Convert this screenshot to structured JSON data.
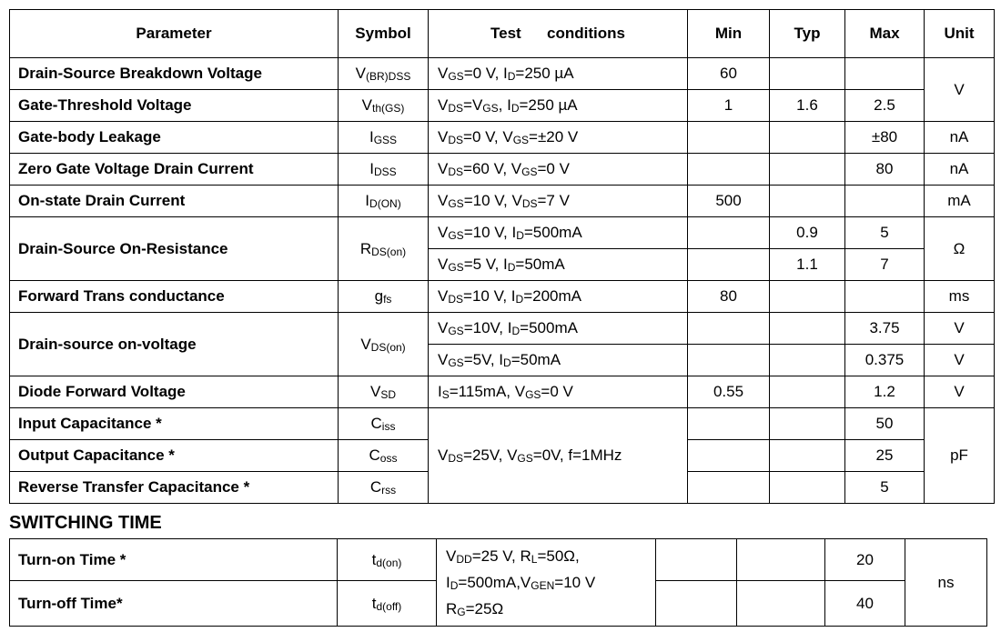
{
  "main_table": {
    "headers": [
      "Parameter",
      "Symbol",
      "Test      conditions",
      "Min",
      "Typ",
      "Max",
      "Unit"
    ],
    "rows": [
      {
        "parameter": "Drain-Source Breakdown Voltage",
        "symbol": [
          "V",
          "(BR)DSS"
        ],
        "conditions": [
          "V",
          "GS",
          "=0 V, I",
          "D",
          "=250 µA"
        ],
        "min": "60",
        "typ": "",
        "max": "",
        "unit": "V"
      },
      {
        "parameter": "Gate-Threshold Voltage",
        "symbol": [
          "V",
          "th(GS)"
        ],
        "conditions": [
          "V",
          "DS",
          "=V",
          "GS",
          ", I",
          "D",
          "=250 µA"
        ],
        "min": "1",
        "typ": "1.6",
        "max": "2.5"
      },
      {
        "parameter": "Gate-body Leakage",
        "symbol": [
          "I",
          "GSS"
        ],
        "conditions": [
          "V",
          "DS",
          "=0 V, V",
          "GS",
          "=±20 V"
        ],
        "min": "",
        "typ": "",
        "max": "±80",
        "unit": "nA"
      },
      {
        "parameter": "Zero Gate Voltage Drain Current",
        "symbol": [
          "I",
          "DSS"
        ],
        "conditions": [
          "V",
          "DS",
          "=60 V, V",
          "GS",
          "=0 V"
        ],
        "min": "",
        "typ": "",
        "max": "80",
        "unit": "nA"
      },
      {
        "parameter": "On-state Drain Current",
        "symbol": [
          "I",
          "D(ON)"
        ],
        "conditions": [
          "V",
          "GS",
          "=10 V, V",
          "DS",
          "=7 V"
        ],
        "min": "500",
        "typ": "",
        "max": "",
        "unit": "mA"
      },
      {
        "parameter": "Drain-Source On-Resistance",
        "symbol": [
          "R",
          "DS(on)"
        ],
        "conditions": [
          "V",
          "GS",
          "=10 V, I",
          "D",
          "=500mA"
        ],
        "min": "",
        "typ": "0.9",
        "max": "5",
        "unit": "Ω"
      },
      {
        "conditions": [
          "V",
          "GS",
          "=5 V, I",
          "D",
          "=50mA"
        ],
        "min": "",
        "typ": "1.1",
        "max": "7"
      },
      {
        "parameter": "Forward Trans conductance",
        "symbol": [
          "g",
          "fs"
        ],
        "conditions": [
          "V",
          "DS",
          "=10 V, I",
          "D",
          "=200mA"
        ],
        "min": "80",
        "typ": "",
        "max": "",
        "unit": "ms"
      },
      {
        "parameter": "Drain-source on-voltage",
        "symbol": [
          "V",
          "DS(on)"
        ],
        "conditions": [
          "V",
          "GS",
          "=10V, I",
          "D",
          "=500mA"
        ],
        "min": "",
        "typ": "",
        "max": "3.75",
        "unit": "V"
      },
      {
        "conditions": [
          "V",
          "GS",
          "=5V, I",
          "D",
          "=50mA"
        ],
        "min": "",
        "typ": "",
        "max": "0.375",
        "unit": "V"
      },
      {
        "parameter": "Diode Forward Voltage",
        "symbol": [
          "V",
          "SD"
        ],
        "conditions": [
          "I",
          "S",
          "=115mA, V",
          "GS",
          "=0 V"
        ],
        "min": "0.55",
        "typ": "",
        "max": "1.2",
        "unit": "V"
      },
      {
        "parameter": "Input Capacitance *",
        "symbol": [
          "C",
          "iss"
        ],
        "conditions": [
          "V",
          "DS",
          "=25V, V",
          "GS",
          "=0V, f=1MHz"
        ],
        "min": "",
        "typ": "",
        "max": "50",
        "unit": "pF"
      },
      {
        "parameter": "Output Capacitance *",
        "symbol": [
          "C",
          "oss"
        ],
        "min": "",
        "typ": "",
        "max": "25"
      },
      {
        "parameter": "Reverse Transfer Capacitance *",
        "symbol": [
          "C",
          "rss"
        ],
        "min": "",
        "typ": "",
        "max": "5"
      }
    ]
  },
  "section_title": "SWITCHING TIME",
  "switching_table": {
    "rows": [
      {
        "parameter": "Turn-on Time *",
        "symbol": [
          "t",
          "d(on)"
        ],
        "conditions": [
          [
            "V",
            "DD",
            "=25 V, R",
            "L",
            "=50Ω,"
          ],
          [
            "I",
            "D",
            "=500mA,V",
            "GEN",
            "=10 V"
          ],
          [
            "R",
            "G",
            "=25Ω"
          ]
        ],
        "min": "",
        "typ": "",
        "max": "20",
        "unit": "ns"
      },
      {
        "parameter": "Turn-off Time*",
        "symbol": [
          "t",
          "d(off)"
        ],
        "min": "",
        "typ": "",
        "max": "40"
      }
    ]
  }
}
